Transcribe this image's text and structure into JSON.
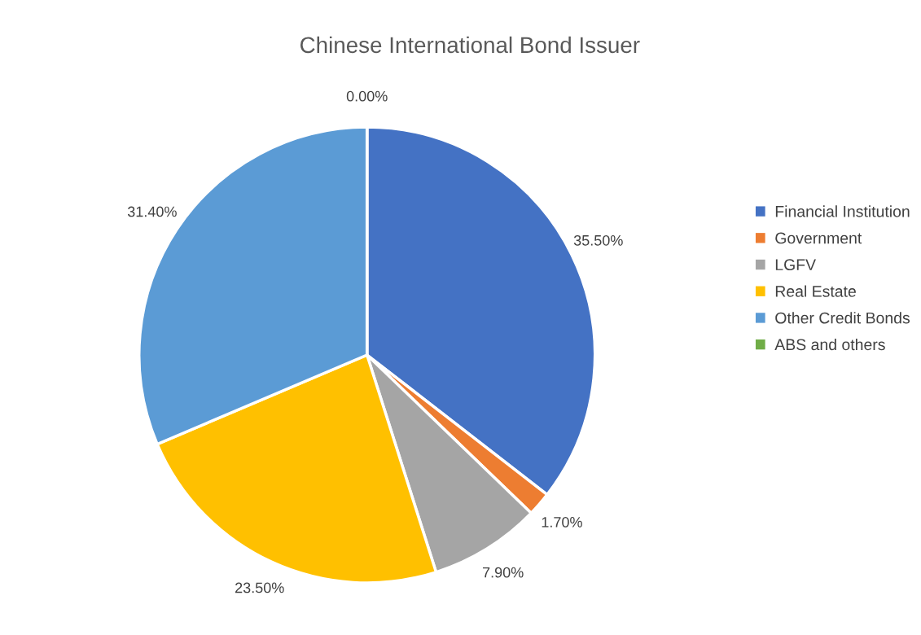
{
  "chart_data": {
    "type": "pie",
    "title": "Chinese International Bond Issuer",
    "categories": [
      "Financial Institution",
      "Government",
      "LGFV",
      "Real Estate",
      "Other Credit Bonds",
      "ABS and others"
    ],
    "values": [
      35.5,
      1.7,
      7.9,
      23.5,
      31.4,
      0.0
    ],
    "value_labels": [
      "35.50%",
      "1.70%",
      "7.90%",
      "23.50%",
      "31.40%",
      "0.00%"
    ],
    "colors": [
      "#4472c4",
      "#ed7d31",
      "#a5a5a5",
      "#ffc000",
      "#5b9bd5",
      "#70ad47"
    ],
    "legend": "right"
  }
}
